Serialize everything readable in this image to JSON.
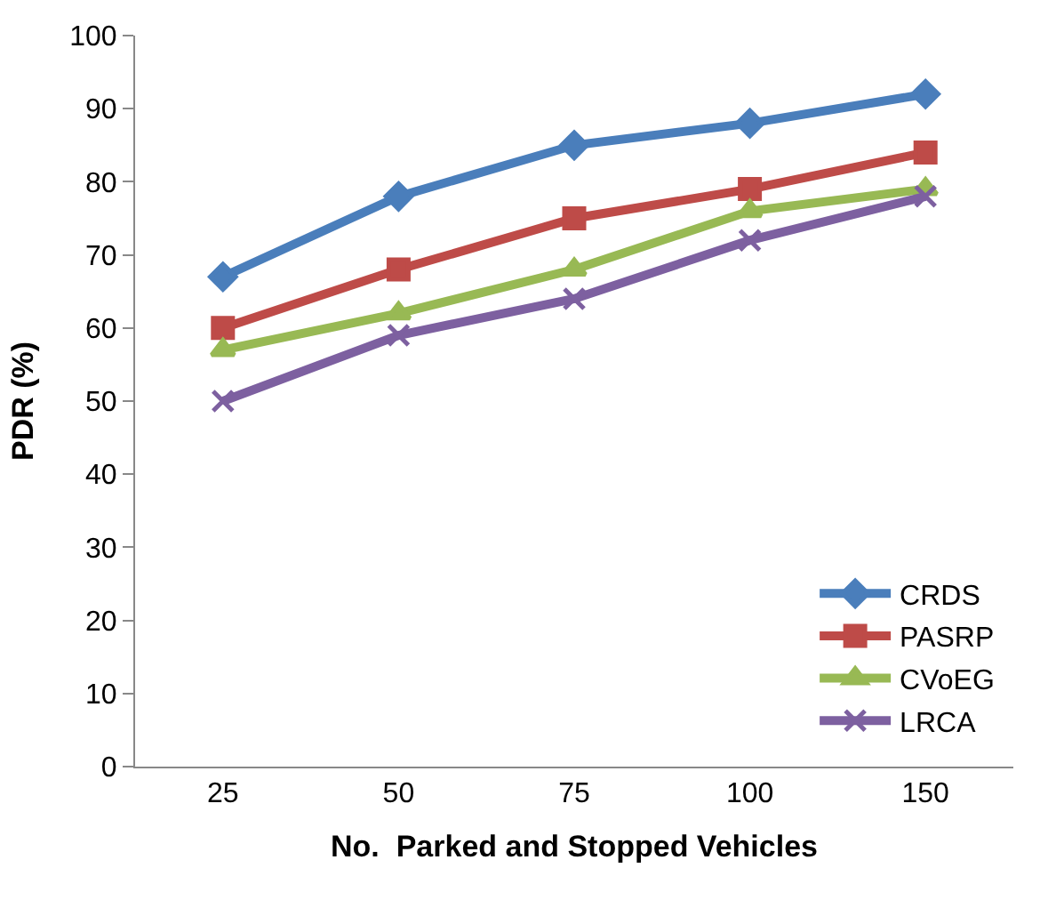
{
  "chart_data": {
    "type": "line",
    "xlabel": "No.  Parked and Stopped Vehicles",
    "ylabel": "PDR (%)",
    "categories": [
      "25",
      "50",
      "75",
      "100",
      "150"
    ],
    "series": [
      {
        "name": "CRDS",
        "color": "#4a7ebb",
        "marker": "diamond",
        "values": [
          67,
          78,
          85,
          88,
          92
        ]
      },
      {
        "name": "PASRP",
        "color": "#be4b48",
        "marker": "square",
        "values": [
          60,
          68,
          75,
          79,
          84
        ]
      },
      {
        "name": "CVoEG",
        "color": "#98b954",
        "marker": "triangle",
        "values": [
          57,
          62,
          68,
          76,
          79
        ]
      },
      {
        "name": "LRCA",
        "color": "#7d60a0",
        "marker": "cross",
        "values": [
          50,
          59,
          64,
          72,
          78
        ]
      }
    ],
    "ylim": [
      0,
      100
    ],
    "yticks": [
      0,
      10,
      20,
      30,
      40,
      50,
      60,
      70,
      80,
      90,
      100
    ],
    "legend": "bottom right"
  }
}
